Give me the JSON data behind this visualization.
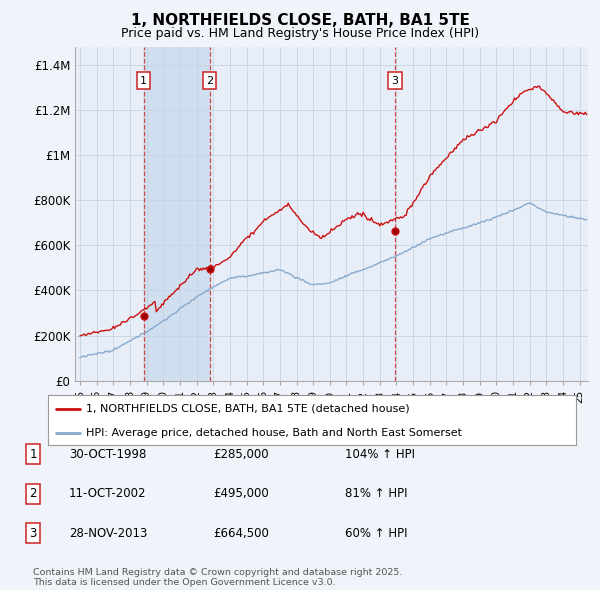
{
  "title": "1, NORTHFIELDS CLOSE, BATH, BA1 5TE",
  "subtitle": "Price paid vs. HM Land Registry's House Price Index (HPI)",
  "ylabel_ticks": [
    "£0",
    "£200K",
    "£400K",
    "£600K",
    "£800K",
    "£1M",
    "£1.2M",
    "£1.4M"
  ],
  "ytick_values": [
    0,
    200000,
    400000,
    600000,
    800000,
    1000000,
    1200000,
    1400000
  ],
  "ylim": [
    0,
    1480000
  ],
  "xlim_start": 1994.7,
  "xlim_end": 2025.5,
  "sale_dates": [
    1998.83,
    2002.78,
    2013.91
  ],
  "sale_prices": [
    285000,
    495000,
    664500
  ],
  "sale_labels": [
    "1",
    "2",
    "3"
  ],
  "vline_color": "#cc2222",
  "red_line_color": "#cc1111",
  "blue_line_color": "#88aacc",
  "span_color": "#d0dff0",
  "legend_red_label": "1, NORTHFIELDS CLOSE, BATH, BA1 5TE (detached house)",
  "legend_blue_label": "HPI: Average price, detached house, Bath and North East Somerset",
  "table_rows": [
    [
      "1",
      "30-OCT-1998",
      "£285,000",
      "104% ↑ HPI"
    ],
    [
      "2",
      "11-OCT-2002",
      "£495,000",
      "81% ↑ HPI"
    ],
    [
      "3",
      "28-NOV-2013",
      "£664,500",
      "60% ↑ HPI"
    ]
  ],
  "footnote": "Contains HM Land Registry data © Crown copyright and database right 2025.\nThis data is licensed under the Open Government Licence v3.0.",
  "bg_color": "#f0f4fa",
  "plot_bg": "#e8eef8"
}
